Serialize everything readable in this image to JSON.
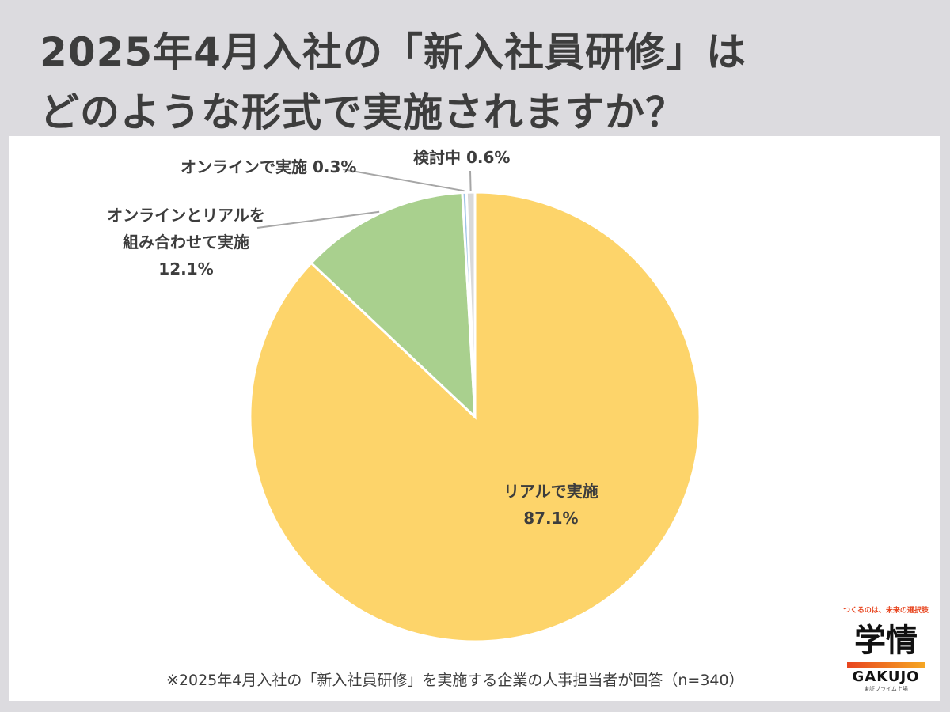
{
  "title": {
    "line1": "2025年4月入社の「新入社員研修」は",
    "line2": "どのような形式で実施されますか？"
  },
  "chart_data": {
    "type": "pie",
    "start_angle": "12 o'clock",
    "direction": "clockwise",
    "slices": [
      {
        "label": "リアルで実施",
        "value": 87.1,
        "value_label": "87.1%",
        "color": "#fdd46a"
      },
      {
        "label": "オンラインとリアルを組み合わせて実施",
        "label_lines": [
          "オンラインとリアルを",
          "組み合わせて実施"
        ],
        "value": 12.1,
        "value_label": "12.1%",
        "color": "#a9d08e"
      },
      {
        "label": "オンラインで実施",
        "value": 0.3,
        "value_label": "0.3%",
        "color": "#9dc3e6"
      },
      {
        "label": "検討中",
        "value": 0.6,
        "value_label": "0.6%",
        "color": "#d9d9d9"
      }
    ]
  },
  "footnote": "※2025年4月入社の「新入社員研修」を実施する企業の人事担当者が回答（n=340）",
  "logo": {
    "tagline": "つくるのは、未来の選択肢",
    "mark": "学情",
    "name": "GAKUJO",
    "sub": "東証プライム上場"
  }
}
